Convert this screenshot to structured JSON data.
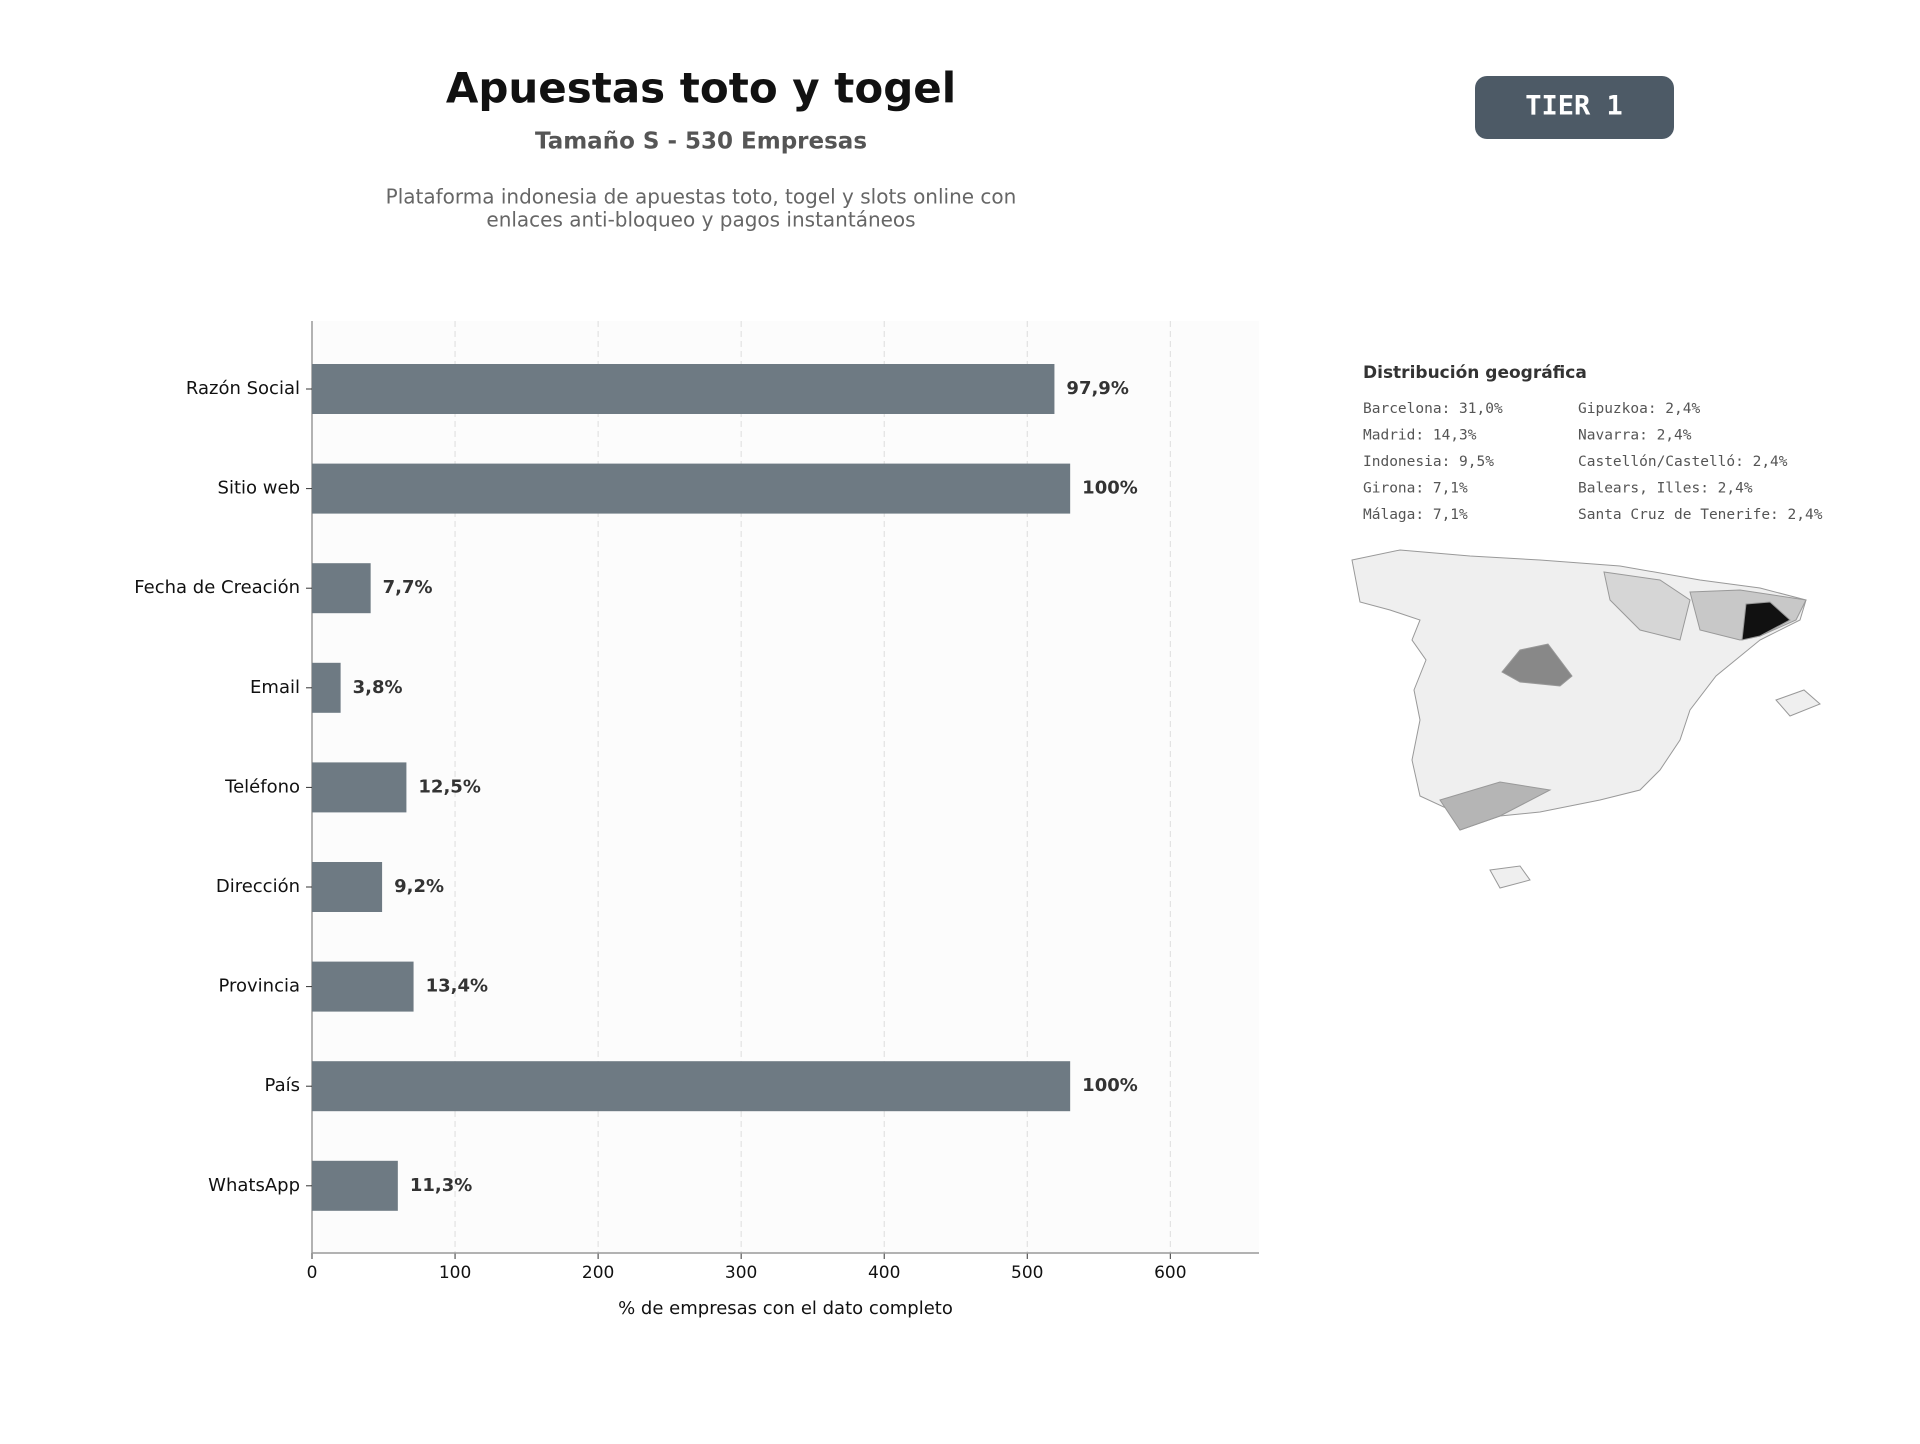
{
  "header": {
    "title": "Apuestas toto y togel",
    "subtitle": "Tamaño S - 530 Empresas",
    "description": [
      "Plataforma indonesia de apuestas toto, togel y slots online con",
      "enlaces anti-bloqueo y pagos instantáneos"
    ]
  },
  "badge": "TIER 1",
  "chart_data": {
    "type": "bar",
    "orientation": "horizontal",
    "xlabel": "% de empresas con el dato completo",
    "categories": [
      "Razón Social",
      "Sitio web",
      "Fecha de Creación",
      "Email",
      "Teléfono",
      "Dirección",
      "Provincia",
      "País",
      "WhatsApp"
    ],
    "values": [
      519,
      530,
      41,
      20,
      66,
      49,
      71,
      530,
      60
    ],
    "value_labels": [
      "97,9%",
      "100%",
      "7,7%",
      "3,8%",
      "12,5%",
      "9,2%",
      "13,4%",
      "100%",
      "11,3%"
    ],
    "color": "#6e7a83",
    "xlim": [
      0,
      662
    ],
    "xticks": [
      0,
      100,
      200,
      300,
      400,
      500,
      600
    ],
    "grid": true
  },
  "geo": {
    "title": "Distribución geográfica",
    "items": [
      "Barcelona: 31,0%",
      "Madrid: 14,3%",
      "Indonesia: 9,5%",
      "Girona: 7,1%",
      "Málaga: 7,1%",
      "Gipuzkoa: 2,4%",
      "Navarra: 2,4%",
      "Castellón/Castelló: 2,4%",
      "Balears, Illes: 2,4%",
      "Santa Cruz de Tenerife: 2,4%"
    ]
  }
}
